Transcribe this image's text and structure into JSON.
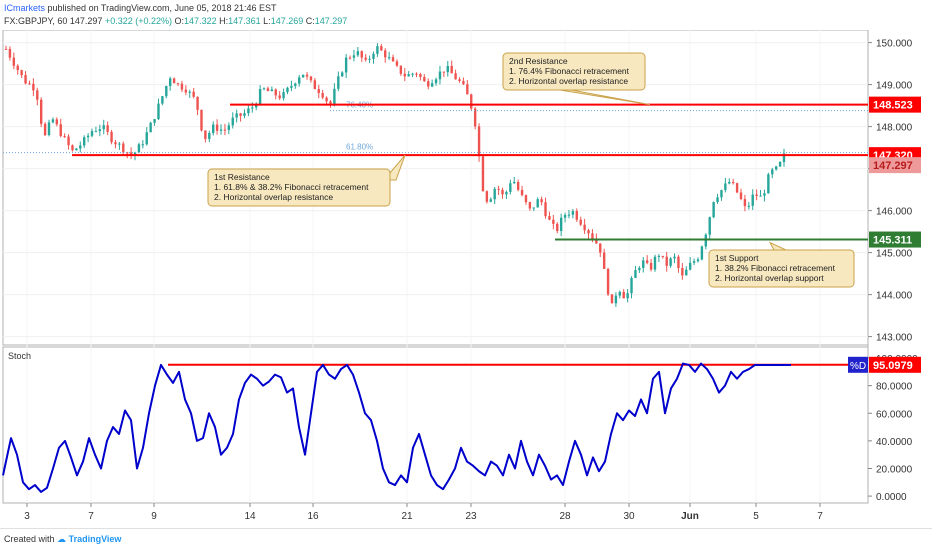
{
  "header": {
    "author": "ICmarkets",
    "published_text": "published on TradingView.com, June 05, 2018 21:46 EST",
    "symbol": "FX:GBPJPY, 60",
    "last": "147.297",
    "change": "+0.322 (+0.22%)",
    "o_label": "O:",
    "o": "147.322",
    "h_label": "H:",
    "h": "147.361",
    "l_label": "L:",
    "l": "147.269",
    "c_label": "C:",
    "c": "147.297"
  },
  "footer": {
    "created_with": "Created with",
    "brand": "TradingView"
  },
  "colors": {
    "bull": "#26a69a",
    "bear": "#ef5350",
    "resistance": "#ff0000",
    "support": "#2e7d32",
    "stoch": "#0000cc",
    "callout_bg": "#f7e8bf",
    "callout_border": "#c9a24a"
  },
  "chart_data": [
    {
      "type": "candlestick",
      "ylim": [
        142.8,
        150.3
      ],
      "y_ticks": [
        "150.000",
        "149.000",
        "148.000",
        "147.000",
        "146.000",
        "145.000",
        "144.000",
        "143.000"
      ],
      "x_ticks": [
        "3",
        "7",
        "9",
        "14",
        "16",
        "21",
        "23",
        "28",
        "30",
        "Jun",
        "5",
        "7"
      ],
      "close_path": [
        [
          0,
          150.1
        ],
        [
          12,
          149.6
        ],
        [
          24,
          149.1
        ],
        [
          36,
          148.9
        ],
        [
          44,
          147.7
        ],
        [
          52,
          148.2
        ],
        [
          62,
          147.8
        ],
        [
          72,
          147.4
        ],
        [
          82,
          147.6
        ],
        [
          92,
          147.9
        ],
        [
          102,
          148.0
        ],
        [
          112,
          147.7
        ],
        [
          122,
          147.5
        ],
        [
          132,
          147.3
        ],
        [
          142,
          147.6
        ],
        [
          152,
          148.1
        ],
        [
          162,
          148.7
        ],
        [
          170,
          149.2
        ],
        [
          178,
          149.0
        ],
        [
          186,
          148.9
        ],
        [
          196,
          148.6
        ],
        [
          204,
          147.7
        ],
        [
          214,
          148.0
        ],
        [
          224,
          147.9
        ],
        [
          234,
          148.2
        ],
        [
          244,
          148.3
        ],
        [
          254,
          148.5
        ],
        [
          262,
          148.9
        ],
        [
          272,
          148.8
        ],
        [
          282,
          148.7
        ],
        [
          292,
          149.0
        ],
        [
          302,
          149.3
        ],
        [
          312,
          149.0
        ],
        [
          322,
          148.8
        ],
        [
          330,
          148.5
        ],
        [
          338,
          149.1
        ],
        [
          346,
          149.6
        ],
        [
          356,
          149.8
        ],
        [
          366,
          149.5
        ],
        [
          376,
          149.9
        ],
        [
          386,
          149.7
        ],
        [
          396,
          149.4
        ],
        [
          406,
          149.2
        ],
        [
          416,
          149.3
        ],
        [
          426,
          149.0
        ],
        [
          436,
          149.2
        ],
        [
          446,
          149.4
        ],
        [
          454,
          149.2
        ],
        [
          462,
          149.0
        ],
        [
          470,
          148.6
        ],
        [
          476,
          148.0
        ],
        [
          482,
          146.6
        ],
        [
          488,
          146.2
        ],
        [
          496,
          146.6
        ],
        [
          504,
          146.3
        ],
        [
          512,
          146.8
        ],
        [
          520,
          146.4
        ],
        [
          530,
          146.0
        ],
        [
          540,
          146.3
        ],
        [
          548,
          145.8
        ],
        [
          556,
          145.5
        ],
        [
          564,
          145.9
        ],
        [
          572,
          146.0
        ],
        [
          582,
          145.7
        ],
        [
          592,
          145.4
        ],
        [
          600,
          145.1
        ],
        [
          606,
          144.3
        ],
        [
          612,
          143.7
        ],
        [
          618,
          144.2
        ],
        [
          626,
          143.9
        ],
        [
          634,
          144.5
        ],
        [
          642,
          144.8
        ],
        [
          650,
          144.6
        ],
        [
          658,
          145.0
        ],
        [
          666,
          144.7
        ],
        [
          674,
          144.9
        ],
        [
          682,
          144.4
        ],
        [
          690,
          144.7
        ],
        [
          698,
          144.9
        ],
        [
          706,
          145.5
        ],
        [
          714,
          146.3
        ],
        [
          722,
          146.5
        ],
        [
          730,
          146.7
        ],
        [
          738,
          146.4
        ],
        [
          746,
          146.0
        ],
        [
          754,
          146.4
        ],
        [
          762,
          146.3
        ],
        [
          770,
          146.9
        ],
        [
          778,
          147.0
        ],
        [
          784,
          147.297
        ]
      ],
      "candle_count": 200,
      "last_price": 147.297,
      "fib_levels": [
        {
          "label": "76.40%",
          "value": 148.38
        },
        {
          "label": "61.80%",
          "value": 147.38
        }
      ],
      "levels": [
        {
          "name": "2nd Resistance",
          "value": 148.523,
          "value_label": "148.523",
          "kind": "resistance"
        },
        {
          "name": "1st Resistance",
          "value": 147.32,
          "value_label": "147.320",
          "kind": "resistance"
        },
        {
          "name": "1st Support",
          "value": 145.311,
          "value_label": "145.311",
          "kind": "support"
        }
      ],
      "last_label": "147.297"
    },
    {
      "type": "line",
      "title": "Stoch",
      "ylim": [
        -5,
        108
      ],
      "y_ticks": [
        "100.0000",
        "80.0000",
        "60.0000",
        "40.0000",
        "20.0000",
        "0.0000"
      ],
      "series_name": "%D",
      "last_value": "95.0979",
      "ref_level": 95.1,
      "series_x": [
        0,
        8,
        14,
        20,
        26,
        32,
        38,
        44,
        50,
        56,
        62,
        68,
        74,
        80,
        86,
        92,
        98,
        104,
        110,
        116,
        122,
        128,
        134,
        140,
        146,
        152,
        158,
        164,
        170,
        176,
        182,
        188,
        194,
        200,
        206,
        212,
        218,
        224,
        230,
        236,
        242,
        248,
        254,
        260,
        266,
        272,
        278,
        284,
        290,
        296,
        302,
        308,
        314,
        320,
        326,
        332,
        338,
        344,
        350,
        356,
        362,
        368,
        374,
        380,
        386,
        392,
        398,
        404,
        410,
        416,
        422,
        428,
        434,
        440,
        446,
        452,
        458,
        464,
        470,
        476,
        482,
        488,
        494,
        500,
        506,
        512,
        518,
        524,
        530,
        536,
        542,
        548,
        554,
        560,
        566,
        572,
        578,
        584,
        590,
        596,
        602,
        608,
        614,
        620,
        626,
        632,
        638,
        644,
        650,
        656,
        662,
        668,
        674,
        680,
        686,
        692,
        698,
        704,
        710,
        716,
        722,
        728,
        734,
        740,
        746,
        752,
        758,
        764,
        770,
        776,
        782,
        788
      ],
      "series_values": [
        15,
        42,
        30,
        10,
        5,
        8,
        3,
        6,
        20,
        35,
        40,
        28,
        15,
        25,
        42,
        30,
        20,
        40,
        50,
        45,
        62,
        55,
        20,
        35,
        60,
        80,
        95,
        88,
        82,
        90,
        70,
        60,
        40,
        42,
        60,
        50,
        30,
        35,
        45,
        70,
        82,
        88,
        85,
        80,
        83,
        88,
        86,
        75,
        78,
        50,
        30,
        60,
        90,
        95,
        88,
        85,
        92,
        95,
        88,
        75,
        60,
        55,
        40,
        20,
        10,
        8,
        15,
        10,
        35,
        45,
        30,
        15,
        8,
        5,
        12,
        20,
        35,
        25,
        22,
        18,
        15,
        25,
        22,
        15,
        30,
        20,
        40,
        25,
        15,
        30,
        22,
        12,
        15,
        8,
        25,
        40,
        30,
        15,
        28,
        18,
        25,
        45,
        60,
        55,
        62,
        58,
        70,
        60,
        85,
        90,
        60,
        78,
        85,
        96,
        95,
        90,
        96,
        92,
        85,
        75,
        80,
        90,
        85,
        90,
        92,
        95,
        95,
        95,
        95,
        95,
        95,
        95
      ]
    }
  ],
  "annotations": [
    {
      "title": "2nd Resistance",
      "lines": [
        "1. 76.4% Fibonacci retracement",
        "2. Horizontal overlap resistance"
      ]
    },
    {
      "title": "1st Resistance",
      "lines": [
        "1. 61.8% & 38.2% Fibonacci retracement",
        "2. Horizontal overlap resistance"
      ]
    },
    {
      "title": "1st Support",
      "lines": [
        "1. 38.2% Fibonacci retracement",
        "2. Horizontal overlap support"
      ]
    }
  ]
}
